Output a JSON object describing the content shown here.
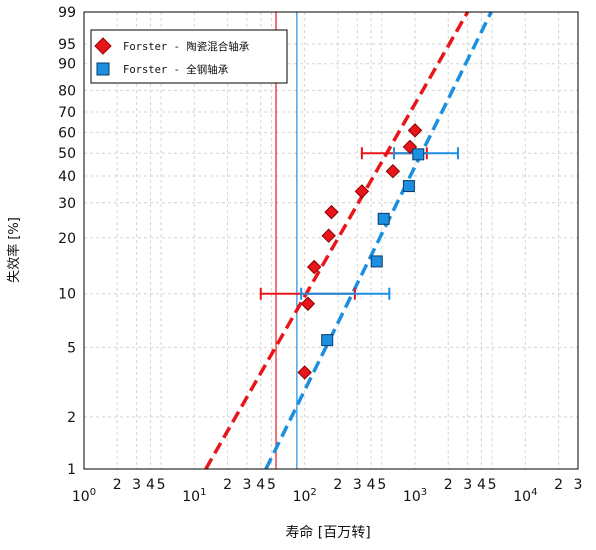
{
  "chart_data": {
    "type": "scatter",
    "xlabel": "寿命 [百万转]",
    "ylabel": "失效率 [%]",
    "x_scale": "log",
    "y_scale": "weibull-probability",
    "xlim": [
      1,
      30000
    ],
    "ylim": [
      1,
      99
    ],
    "grid": true,
    "legend_position": "top-left",
    "x_ticks": [
      {
        "value": 1,
        "base": "10",
        "exp": "0"
      },
      {
        "value": 2,
        "label": "2"
      },
      {
        "value": 3,
        "label": "3"
      },
      {
        "value": 4,
        "label": "4"
      },
      {
        "value": 5,
        "label": "5"
      },
      {
        "value": 10,
        "base": "10",
        "exp": "1"
      },
      {
        "value": 20,
        "label": "2"
      },
      {
        "value": 30,
        "label": "3"
      },
      {
        "value": 40,
        "label": "4"
      },
      {
        "value": 50,
        "label": "5"
      },
      {
        "value": 100,
        "base": "10",
        "exp": "2"
      },
      {
        "value": 200,
        "label": "2"
      },
      {
        "value": 300,
        "label": "3"
      },
      {
        "value": 400,
        "label": "4"
      },
      {
        "value": 500,
        "label": "5"
      },
      {
        "value": 1000,
        "base": "10",
        "exp": "3"
      },
      {
        "value": 2000,
        "label": "2"
      },
      {
        "value": 3000,
        "label": "3"
      },
      {
        "value": 4000,
        "label": "4"
      },
      {
        "value": 5000,
        "label": "5"
      },
      {
        "value": 10000,
        "base": "10",
        "exp": "4"
      },
      {
        "value": 20000,
        "label": "2"
      },
      {
        "value": 30000,
        "label": "3"
      }
    ],
    "y_ticks": [
      "1",
      "2",
      "5",
      "10",
      "20",
      "30",
      "40",
      "50",
      "60",
      "70",
      "80",
      "90",
      "95",
      "99"
    ],
    "series": [
      {
        "name": "Forster - 陶瓷混合轴承",
        "marker": "diamond",
        "color": "#e8161b",
        "points": [
          {
            "x": 100,
            "y": 3.6
          },
          {
            "x": 107,
            "y": 8.8
          },
          {
            "x": 122,
            "y": 14
          },
          {
            "x": 165,
            "y": 20.5
          },
          {
            "x": 175,
            "y": 27
          },
          {
            "x": 330,
            "y": 34
          },
          {
            "x": 630,
            "y": 42
          },
          {
            "x": 900,
            "y": 53
          },
          {
            "x": 1000,
            "y": 61
          }
        ],
        "fit_line": [
          {
            "x": 12.7,
            "y": 1
          },
          {
            "x": 3000,
            "y": 99
          }
        ],
        "interval_bars": [
          {
            "x_low": 40,
            "x_high": 285,
            "y": 10
          },
          {
            "x_low": 330,
            "x_high": 1280,
            "y": 50
          }
        ],
        "reference_x": 55
      },
      {
        "name": "Forster - 全钢轴承",
        "marker": "square",
        "color": "#1b8fe0",
        "points": [
          {
            "x": 160,
            "y": 5.5
          },
          {
            "x": 450,
            "y": 15
          },
          {
            "x": 520,
            "y": 25
          },
          {
            "x": 880,
            "y": 36
          },
          {
            "x": 1070,
            "y": 49.5
          }
        ],
        "fit_line": [
          {
            "x": 44.5,
            "y": 1
          },
          {
            "x": 4900,
            "y": 99
          }
        ],
        "interval_bars": [
          {
            "x_low": 93,
            "x_high": 585,
            "y": 10
          },
          {
            "x_low": 645,
            "x_high": 2450,
            "y": 50
          }
        ],
        "reference_x": 85
      }
    ]
  }
}
